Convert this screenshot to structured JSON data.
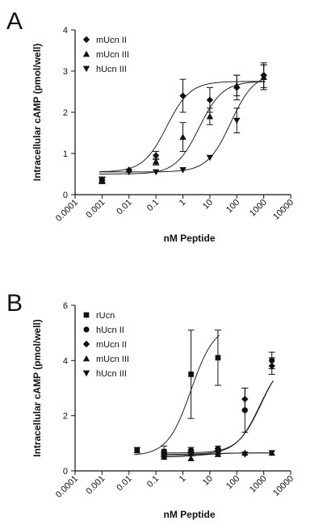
{
  "chart_data": [
    {
      "panel": "A",
      "type": "scatter",
      "xscale": "log",
      "xlabel": "nM Peptide",
      "ylabel": "Intracellular cAMP (pmol/well)",
      "xlim": [
        0.0001,
        10000
      ],
      "ylim": [
        0,
        4
      ],
      "xticks": [
        "0.0001",
        "0.001",
        "0.01",
        "0.1",
        "1",
        "10",
        "100",
        "1000",
        "10000"
      ],
      "yticks": [
        "0",
        "1",
        "2",
        "3",
        "4"
      ],
      "grid": false,
      "legend_position": "top-left",
      "series": [
        {
          "name": "mUcn II",
          "marker": "diamond",
          "x": [
            0.001,
            0.01,
            0.1,
            1,
            10,
            100,
            1000
          ],
          "y": [
            0.35,
            0.6,
            0.95,
            2.4,
            2.3,
            2.6,
            2.9
          ],
          "err": [
            0.08,
            0.05,
            0.1,
            0.4,
            0.3,
            0.3,
            0.3
          ],
          "fit": {
            "bottom": 0.55,
            "top": 2.75,
            "ec50": 0.25
          }
        },
        {
          "name": "mUcn III",
          "marker": "triangle-up",
          "x": [
            0.001,
            0.01,
            0.1,
            1,
            10,
            100,
            1000
          ],
          "y": [
            0.35,
            0.6,
            0.8,
            1.4,
            1.9,
            2.65,
            2.85
          ],
          "err": [
            0.08,
            0.05,
            0.08,
            0.35,
            0.2,
            0.25,
            0.3
          ],
          "fit": {
            "bottom": 0.5,
            "top": 2.75,
            "ec50": 4
          }
        },
        {
          "name": "hUcn III",
          "marker": "triangle-down",
          "x": [
            0.001,
            0.01,
            0.1,
            1,
            10,
            100,
            1000
          ],
          "y": [
            0.35,
            0.55,
            0.55,
            0.6,
            0.9,
            1.8,
            2.85
          ],
          "err": [
            0.08,
            0.05,
            0.05,
            0.05,
            0.06,
            0.3,
            0.3
          ],
          "fit": {
            "bottom": 0.55,
            "top": 2.95,
            "ec50": 60
          }
        }
      ]
    },
    {
      "panel": "B",
      "type": "scatter",
      "xscale": "log",
      "xlabel": "nM Peptide",
      "ylabel": "Intracellular cAMP (pmol/well)",
      "xlim": [
        0.0001,
        10000
      ],
      "ylim": [
        0,
        6
      ],
      "xticks": [
        "0.0001",
        "0.001",
        "0.01",
        "0.1",
        "1",
        "10",
        "100",
        "1000",
        "10000"
      ],
      "yticks": [
        "0",
        "2",
        "4",
        "6"
      ],
      "grid": false,
      "legend_position": "top-left",
      "series": [
        {
          "name": "rUcn",
          "marker": "square",
          "x": [
            0.02,
            0.2,
            2,
            20
          ],
          "y": [
            0.75,
            0.7,
            3.5,
            4.1
          ],
          "err": [
            0.1,
            0.2,
            1.6,
            1.0
          ],
          "x_extra": [
            0.02
          ],
          "fit": {
            "bottom": 0.55,
            "top": 5.3,
            "ec50": 2
          }
        },
        {
          "name": "hUcn II",
          "marker": "circle",
          "x": [
            0.2,
            2,
            20,
            200,
            2000
          ],
          "y": [
            0.6,
            0.75,
            0.8,
            2.2,
            4.0
          ],
          "err": [
            0.1,
            0.1,
            0.1,
            0.8,
            0.3
          ],
          "fit": {
            "bottom": 0.65,
            "top": 4.2,
            "ec50": 800
          }
        },
        {
          "name": "mUcn II",
          "marker": "diamond",
          "x": [
            0.2,
            2,
            20,
            200,
            2000
          ],
          "y": [
            0.55,
            0.65,
            0.7,
            2.6,
            3.8
          ],
          "err": [
            0.05,
            0.1,
            0.1,
            0.4,
            0.3
          ],
          "fit": {
            "bottom": 0.6,
            "top": 4.1,
            "ec50": 700
          }
        },
        {
          "name": "mUcn III",
          "marker": "triangle-up",
          "x": [
            0.2,
            2,
            20,
            200,
            2000
          ],
          "y": [
            0.5,
            0.45,
            0.6,
            0.65,
            0.65
          ],
          "err": [
            0.05,
            0.05,
            0.05,
            0.05,
            0.05
          ],
          "fit": {
            "bottom": 0.5,
            "top": 0.65,
            "ec50": 5
          }
        },
        {
          "name": "hUcn III",
          "marker": "triangle-down",
          "x": [
            0.2,
            2,
            20,
            200,
            2000
          ],
          "y": [
            0.55,
            0.6,
            0.65,
            0.6,
            0.65
          ],
          "err": [
            0.05,
            0.05,
            0.05,
            0.05,
            0.05
          ],
          "fit": {
            "bottom": 0.55,
            "top": 0.65,
            "ec50": 5
          }
        }
      ]
    }
  ]
}
